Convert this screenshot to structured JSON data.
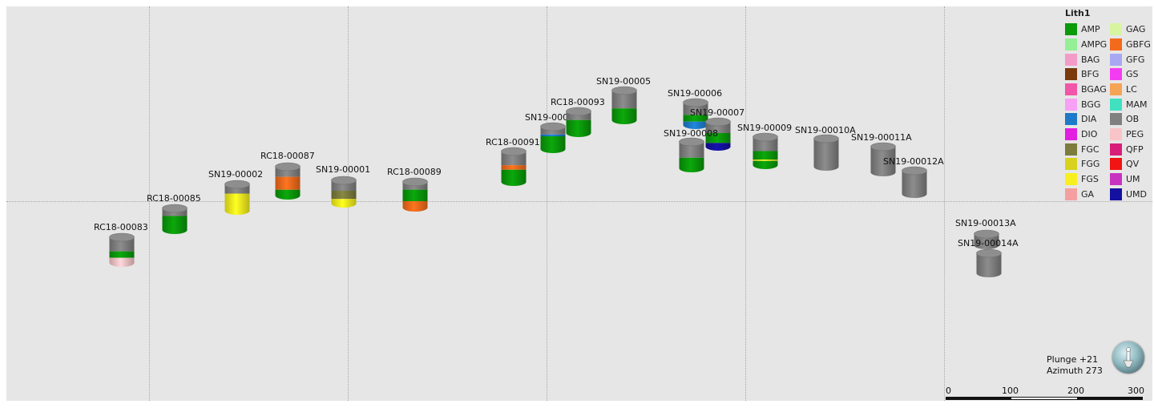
{
  "legend": {
    "title": "Lith1",
    "items": [
      {
        "label": "AMP",
        "color": "#0a9a0a"
      },
      {
        "label": "GAG",
        "color": "#d7f5a0"
      },
      {
        "label": "AMPG",
        "color": "#96ee96"
      },
      {
        "label": "GBFG",
        "color": "#f36a1c"
      },
      {
        "label": "BAG",
        "color": "#f39cc8"
      },
      {
        "label": "GFG",
        "color": "#a8a8f2"
      },
      {
        "label": "BFG",
        "color": "#7a3a0c"
      },
      {
        "label": "GS",
        "color": "#f33cf2"
      },
      {
        "label": "BGAG",
        "color": "#f256a8"
      },
      {
        "label": "LC",
        "color": "#f5a456"
      },
      {
        "label": "BGG",
        "color": "#f7a0f5"
      },
      {
        "label": "MAM",
        "color": "#40e0c0"
      },
      {
        "label": "DIA",
        "color": "#1e7ac8"
      },
      {
        "label": "OB",
        "color": "#808080"
      },
      {
        "label": "DIO",
        "color": "#e21ee0"
      },
      {
        "label": "PEG",
        "color": "#f8c4c8"
      },
      {
        "label": "FGC",
        "color": "#7c7c3c"
      },
      {
        "label": "QFP",
        "color": "#d81e78"
      },
      {
        "label": "FGG",
        "color": "#d6d21e"
      },
      {
        "label": "QV",
        "color": "#f01414"
      },
      {
        "label": "FGS",
        "color": "#f7f01e"
      },
      {
        "label": "UM",
        "color": "#c832c0"
      },
      {
        "label": "GA",
        "color": "#f5a0a0"
      },
      {
        "label": "UMD",
        "color": "#1410a0"
      }
    ]
  },
  "drillholes": [
    {
      "name": "RC18-00083",
      "segments": [
        {
          "lith": "OB",
          "color": "#808080",
          "frac": 0.55
        },
        {
          "lith": "AMP",
          "color": "#0a9a0a",
          "frac": 0.25
        },
        {
          "lith": "PEG",
          "color": "#f8c4c8",
          "frac": 0.2
        }
      ]
    },
    {
      "name": "RC18-00085",
      "segments": [
        {
          "lith": "OB",
          "color": "#808080",
          "frac": 0.35
        },
        {
          "lith": "AMP",
          "color": "#0a9a0a",
          "frac": 0.65
        }
      ]
    },
    {
      "name": "SN19-00002",
      "segments": [
        {
          "lith": "OB",
          "color": "#808080",
          "frac": 0.35
        },
        {
          "lith": "FGS",
          "color": "#f7f01e",
          "frac": 0.65
        }
      ]
    },
    {
      "name": "RC18-00087",
      "segments": [
        {
          "lith": "OB",
          "color": "#808080",
          "frac": 0.35
        },
        {
          "lith": "GBFG",
          "color": "#f36a1c",
          "frac": 0.45
        },
        {
          "lith": "AMP",
          "color": "#0a9a0a",
          "frac": 0.2
        }
      ]
    },
    {
      "name": "SN19-00001",
      "segments": [
        {
          "lith": "OB",
          "color": "#808080",
          "frac": 0.45
        },
        {
          "lith": "FGC",
          "color": "#7c7c3c",
          "frac": 0.35
        },
        {
          "lith": "FGS",
          "color": "#f7f01e",
          "frac": 0.2
        }
      ]
    },
    {
      "name": "RC18-00089",
      "segments": [
        {
          "lith": "OB",
          "color": "#808080",
          "frac": 0.3
        },
        {
          "lith": "AMP",
          "color": "#0a9a0a",
          "frac": 0.45
        },
        {
          "lith": "GBFG",
          "color": "#f36a1c",
          "frac": 0.25
        }
      ]
    },
    {
      "name": "RC18-00091",
      "segments": [
        {
          "lith": "OB",
          "color": "#808080",
          "frac": 0.45
        },
        {
          "lith": "GBFG",
          "color": "#f36a1c",
          "frac": 0.15
        },
        {
          "lith": "AMP",
          "color": "#0a9a0a",
          "frac": 0.4
        }
      ]
    },
    {
      "name": "SN19-00004",
      "segments": [
        {
          "lith": "OB",
          "color": "#808080",
          "frac": 0.35
        },
        {
          "lith": "DIA",
          "color": "#1e7ac8",
          "frac": 0.08
        },
        {
          "lith": "AMP",
          "color": "#0a9a0a",
          "frac": 0.57
        }
      ]
    },
    {
      "name": "RC18-00093",
      "segments": [
        {
          "lith": "OB",
          "color": "#808080",
          "frac": 0.4
        },
        {
          "lith": "AMP",
          "color": "#0a9a0a",
          "frac": 0.6
        }
      ]
    },
    {
      "name": "SN19-00005",
      "segments": [
        {
          "lith": "OB",
          "color": "#808080",
          "frac": 0.6
        },
        {
          "lith": "AMP",
          "color": "#0a9a0a",
          "frac": 0.4
        }
      ]
    },
    {
      "name": "SN19-00006",
      "segments": [
        {
          "lith": "OB",
          "color": "#808080",
          "frac": 0.55
        },
        {
          "lith": "AMP",
          "color": "#0a9a0a",
          "frac": 0.3
        },
        {
          "lith": "DIA",
          "color": "#1e7ac8",
          "frac": 0.15
        }
      ]
    },
    {
      "name": "SN19-00007",
      "segments": [
        {
          "lith": "OB",
          "color": "#808080",
          "frac": 0.45
        },
        {
          "lith": "AMP",
          "color": "#0a9a0a",
          "frac": 0.4
        },
        {
          "lith": "UMD",
          "color": "#1410a0",
          "frac": 0.15
        }
      ]
    },
    {
      "name": "SN19-00008",
      "segments": [
        {
          "lith": "OB",
          "color": "#808080",
          "frac": 0.6
        },
        {
          "lith": "AMP",
          "color": "#0a9a0a",
          "frac": 0.4
        }
      ]
    },
    {
      "name": "SN19-00009",
      "segments": [
        {
          "lith": "OB",
          "color": "#808080",
          "frac": 0.5
        },
        {
          "lith": "AMP",
          "color": "#0a9a0a",
          "frac": 0.3
        },
        {
          "lith": "FGS",
          "color": "#f7f01e",
          "frac": 0.05
        },
        {
          "lith": "AMP",
          "color": "#0a9a0a",
          "frac": 0.15
        }
      ]
    },
    {
      "name": "SN19-00010A",
      "segments": [
        {
          "lith": "OB",
          "color": "#808080",
          "frac": 1.0
        }
      ]
    },
    {
      "name": "SN19-00011A",
      "segments": [
        {
          "lith": "OB",
          "color": "#808080",
          "frac": 1.0
        }
      ]
    },
    {
      "name": "SN19-00012A",
      "segments": [
        {
          "lith": "OB",
          "color": "#808080",
          "frac": 1.0
        }
      ]
    },
    {
      "name": "SN19-00013A",
      "segments": [
        {
          "lith": "OB",
          "color": "#808080",
          "frac": 1.0
        }
      ]
    },
    {
      "name": "SN19-00014A",
      "segments": [
        {
          "lith": "OB",
          "color": "#808080",
          "frac": 1.0
        }
      ]
    }
  ],
  "view": {
    "plunge_label": "Plunge +21",
    "azimuth_label": "Azimuth 273"
  },
  "scale_bar": {
    "labels": [
      "0",
      "100",
      "200",
      "300"
    ]
  }
}
